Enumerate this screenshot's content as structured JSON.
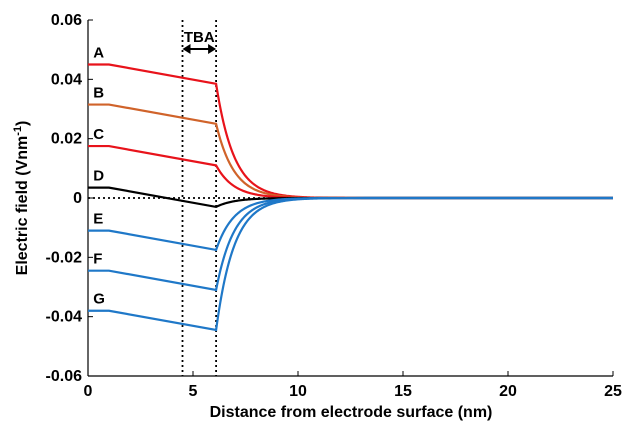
{
  "chart_data": {
    "type": "line",
    "xlabel": "Distance from electrode surface (nm)",
    "ylabel": "Electric field (Vnm",
    "ylabel_sup": "-1",
    "ylabel_close": ")",
    "xlim": [
      0,
      25
    ],
    "ylim": [
      -0.06,
      0.06
    ],
    "xticks": [
      0,
      5,
      10,
      15,
      20,
      25
    ],
    "yticks": [
      -0.06,
      -0.04,
      -0.02,
      0,
      0.02,
      0.04,
      0.06
    ],
    "ytick_labels": [
      "-0.06",
      "-0.04",
      "-0.02",
      "0",
      "0.02",
      "0.04",
      "0.06"
    ],
    "grid": false,
    "annotations": [
      {
        "text": "TBA",
        "type": "double-arrow",
        "x_range": [
          4.5,
          6.1
        ]
      }
    ],
    "dotted_vlines": [
      4.5,
      6.1
    ],
    "dotted_hline": 0,
    "series": [
      {
        "name": "A",
        "color": "#e8131b",
        "y_plateau": 0.045,
        "y_at_interface": 0.0385
      },
      {
        "name": "B",
        "color": "#d0632a",
        "y_plateau": 0.0315,
        "y_at_interface": 0.025
      },
      {
        "name": "C",
        "color": "#e8131b",
        "y_plateau": 0.0175,
        "y_at_interface": 0.011
      },
      {
        "name": "D",
        "color": "#000000",
        "y_plateau": 0.0035,
        "y_at_interface": -0.003
      },
      {
        "name": "E",
        "color": "#1f78c8",
        "y_plateau": -0.011,
        "y_at_interface": -0.0175
      },
      {
        "name": "F",
        "color": "#1f78c8",
        "y_plateau": -0.0245,
        "y_at_interface": -0.031
      },
      {
        "name": "G",
        "color": "#1f78c8",
        "y_plateau": -0.038,
        "y_at_interface": -0.0445
      }
    ]
  }
}
